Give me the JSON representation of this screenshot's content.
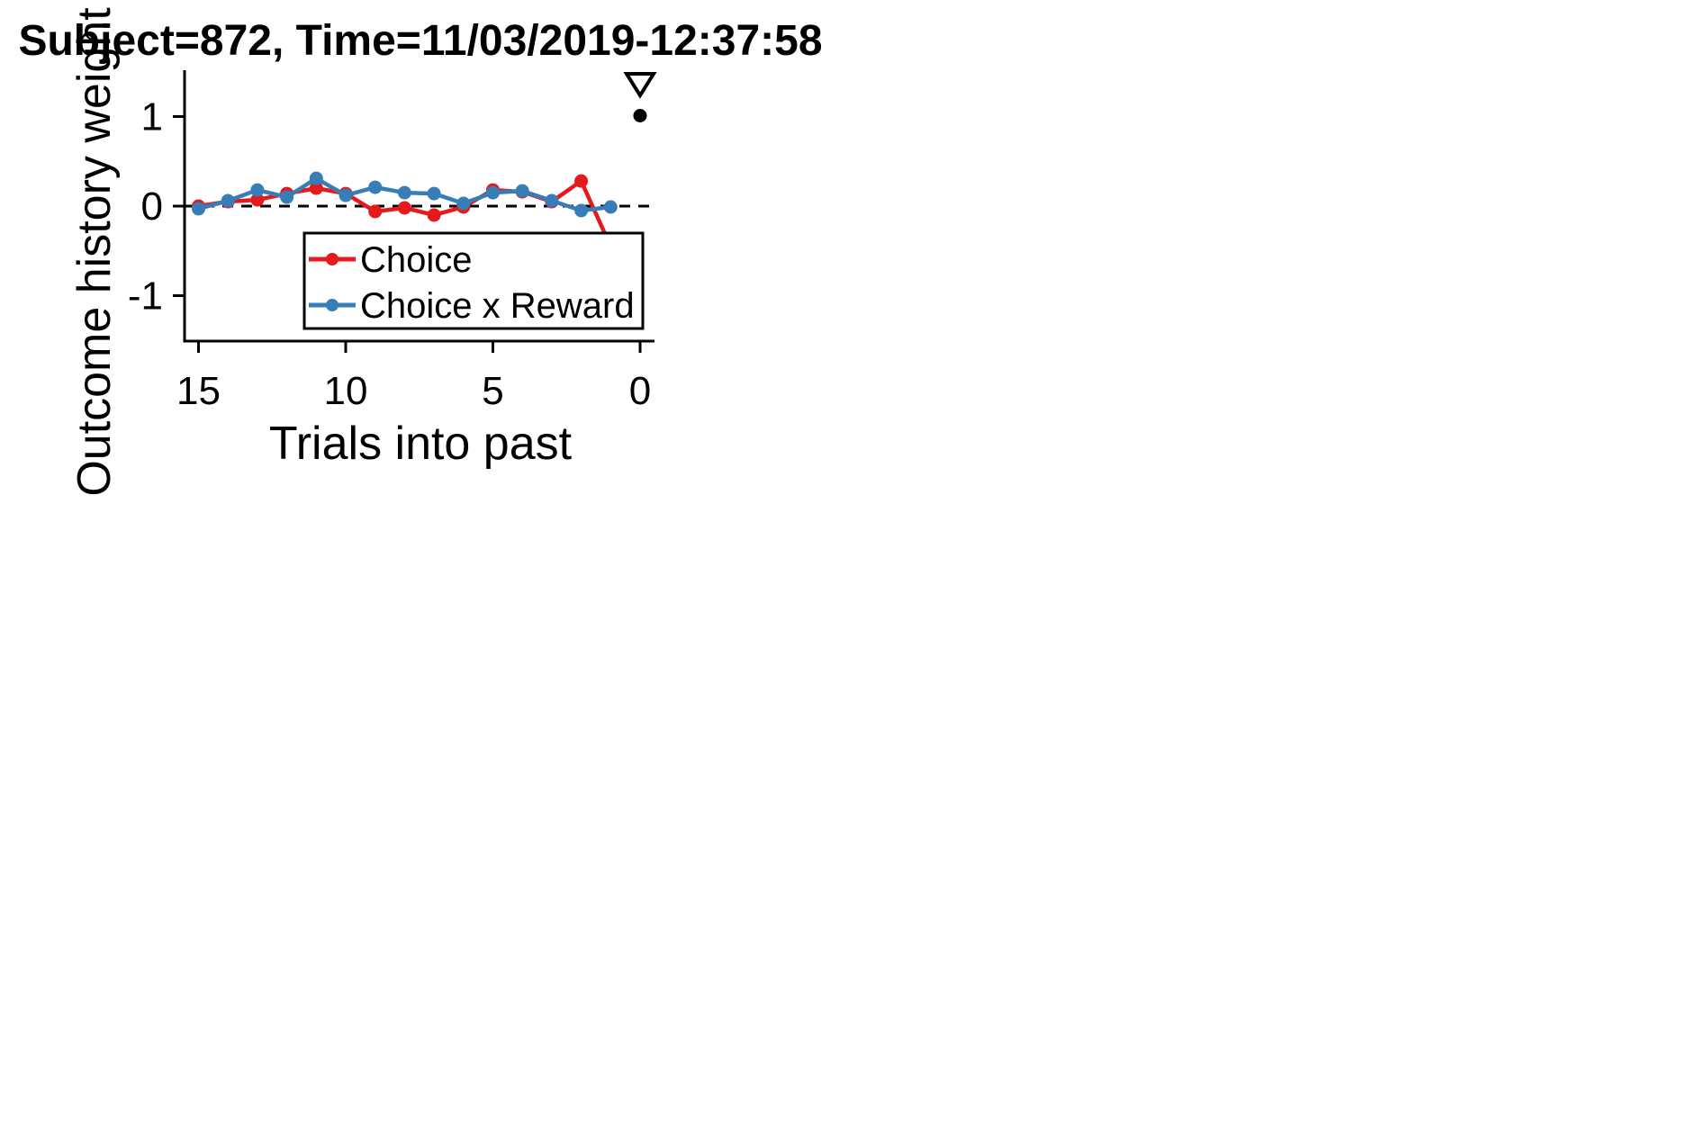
{
  "chart_data": {
    "type": "line",
    "title": "Subject=872, Time=11/03/2019-12:37:58",
    "xlabel": "Trials into past",
    "ylabel": "Outcome history weight",
    "xlim": [
      15.5,
      -0.5
    ],
    "ylim": [
      -1.5,
      1.5
    ],
    "x_reversed": true,
    "xticks": [
      15,
      10,
      5,
      0
    ],
    "yticks": [
      1,
      0,
      -1
    ],
    "xtick_labels": [
      "15",
      "10",
      "5",
      "0"
    ],
    "ytick_labels": [
      "1",
      "0",
      "-1"
    ],
    "zero_line": {
      "y": 0,
      "style": "dashed"
    },
    "grid": false,
    "legend_position": "bottom-right",
    "series": [
      {
        "name": "Choice",
        "color": "#e41a1c",
        "x": [
          15,
          14,
          13,
          12,
          11,
          10,
          9,
          8,
          7,
          6,
          5,
          4,
          3,
          2,
          1
        ],
        "y": [
          0.0,
          0.05,
          0.07,
          0.14,
          0.2,
          0.14,
          -0.06,
          -0.02,
          -0.1,
          -0.01,
          0.18,
          0.16,
          0.05,
          0.28,
          -0.45
        ]
      },
      {
        "name": "Choice x Reward",
        "color": "#377eb8",
        "x": [
          15,
          14,
          13,
          12,
          11,
          10,
          9,
          8,
          7,
          6,
          5,
          4,
          3,
          2,
          1
        ],
        "y": [
          -0.03,
          0.06,
          0.18,
          0.1,
          0.31,
          0.12,
          0.21,
          0.15,
          0.14,
          0.03,
          0.15,
          0.17,
          0.06,
          -0.05,
          -0.01
        ]
      }
    ],
    "bias_point": {
      "x": 0,
      "y": 1.01,
      "color": "#000000"
    },
    "marker": {
      "symbol": "triangle-down-open",
      "x": 0
    }
  }
}
